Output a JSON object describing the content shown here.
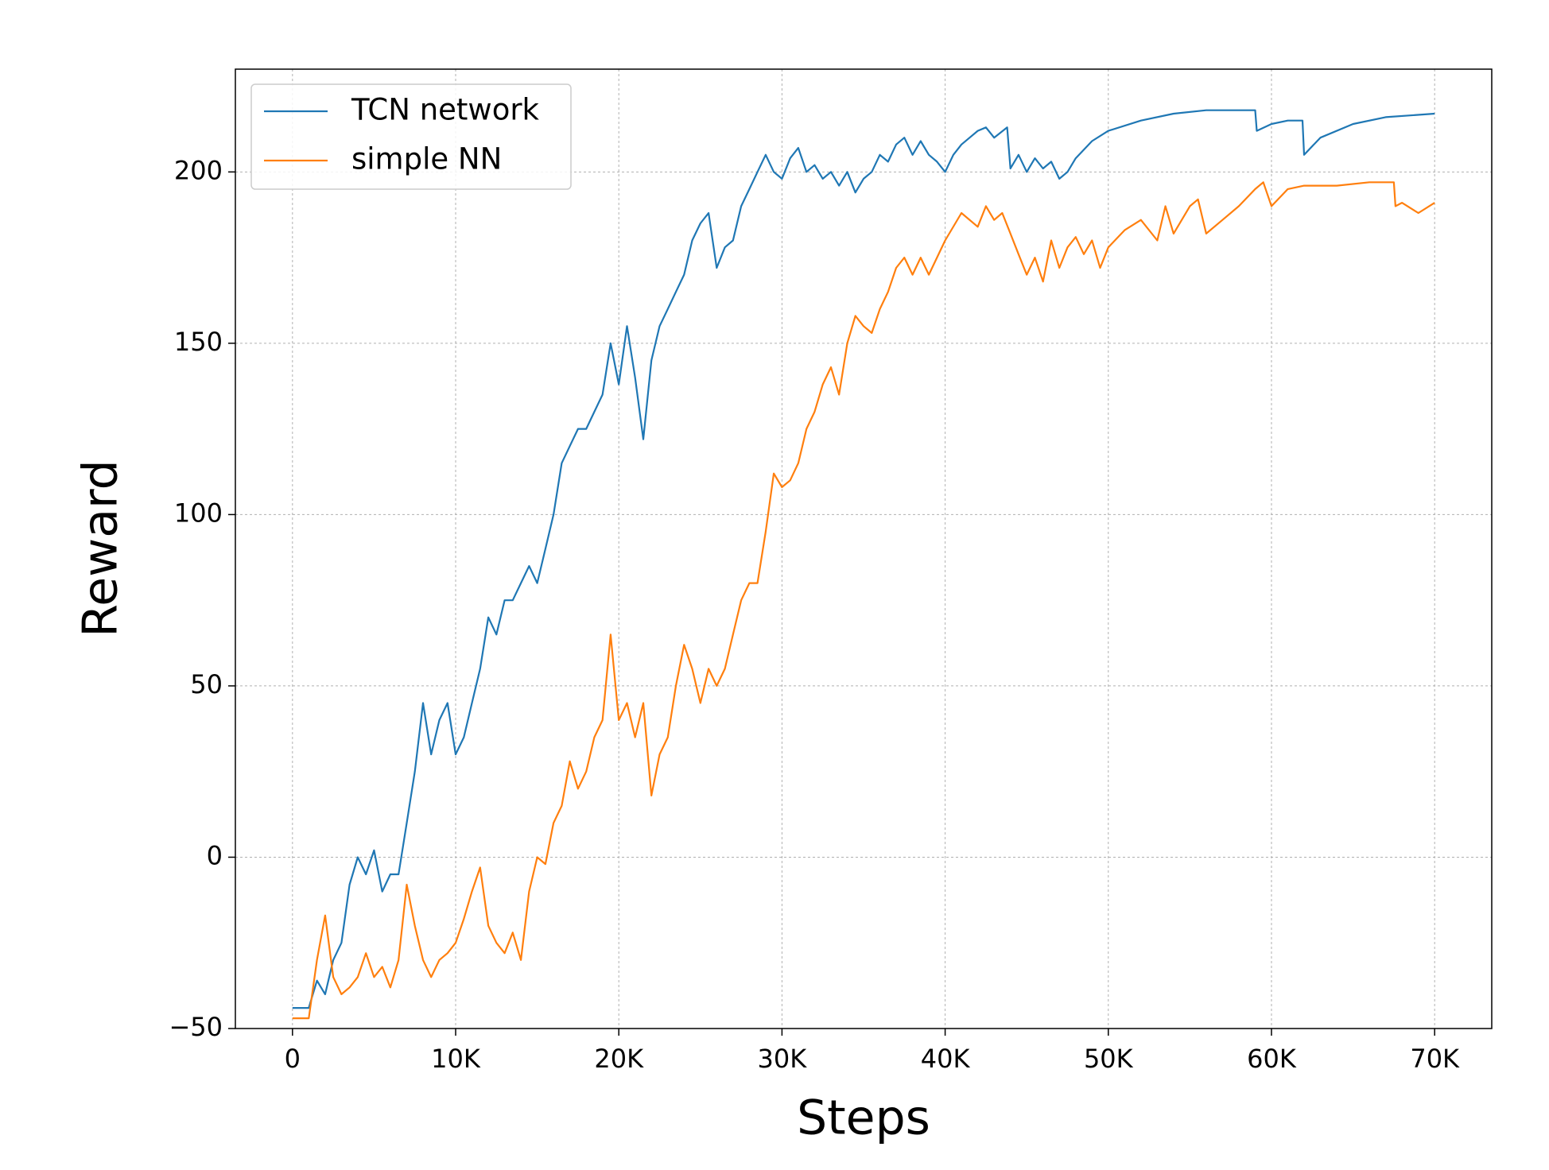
{
  "chart_data": {
    "type": "line",
    "xlabel": "Steps",
    "ylabel": "Reward",
    "xlim": [
      -3500,
      73500
    ],
    "ylim": [
      -50,
      230
    ],
    "xticks": [
      0,
      {
        "value": 10000,
        "label": "10K"
      },
      {
        "value": 20000,
        "label": "20K"
      },
      {
        "value": 30000,
        "label": "30K"
      },
      {
        "value": 40000,
        "label": "40K"
      },
      {
        "value": 50000,
        "label": "50K"
      },
      {
        "value": 60000,
        "label": "60K"
      },
      {
        "value": 70000,
        "label": "70K"
      }
    ],
    "yticks": [
      {
        "value": -50,
        "label": "−50"
      },
      0,
      50,
      100,
      150,
      200
    ],
    "grid": true,
    "legend": "upper left",
    "series": [
      {
        "name": "TCN network",
        "color": "#1f77b4",
        "x": [
          0,
          1000,
          1500,
          2000,
          2500,
          3000,
          3500,
          4000,
          4500,
          5000,
          5500,
          6000,
          6500,
          7000,
          7500,
          8000,
          8500,
          9000,
          9500,
          10000,
          10500,
          11000,
          11500,
          12000,
          12500,
          13000,
          13500,
          14000,
          14500,
          15000,
          15500,
          16000,
          16500,
          17000,
          17500,
          18000,
          18500,
          19000,
          19500,
          20000,
          20500,
          21000,
          21500,
          22000,
          22500,
          23000,
          23500,
          24000,
          24500,
          25000,
          25500,
          26000,
          26500,
          27000,
          27500,
          28000,
          28500,
          29000,
          29500,
          30000,
          30500,
          31000,
          31500,
          32000,
          32500,
          33000,
          33500,
          34000,
          34500,
          35000,
          35500,
          36000,
          36500,
          37000,
          37500,
          38000,
          38500,
          39000,
          39500,
          40000,
          40500,
          41000,
          41500,
          42000,
          42500,
          43000,
          43800,
          44000,
          44500,
          45000,
          45500,
          46000,
          46500,
          47000,
          47500,
          48000,
          49000,
          50000,
          52000,
          54000,
          56000,
          58000,
          59000,
          59100,
          60000,
          61000,
          61900,
          62000,
          63000,
          65000,
          67000,
          70000
        ],
        "values": [
          -44,
          -44,
          -36,
          -40,
          -30,
          -25,
          -8,
          0,
          -5,
          2,
          -10,
          -5,
          -5,
          10,
          25,
          45,
          30,
          40,
          45,
          30,
          35,
          45,
          55,
          70,
          65,
          75,
          75,
          80,
          85,
          80,
          90,
          100,
          115,
          120,
          125,
          125,
          130,
          135,
          150,
          138,
          155,
          140,
          122,
          145,
          155,
          160,
          165,
          170,
          180,
          185,
          188,
          172,
          178,
          180,
          190,
          195,
          200,
          205,
          200,
          198,
          204,
          207,
          200,
          202,
          198,
          200,
          196,
          200,
          194,
          198,
          200,
          205,
          203,
          208,
          210,
          205,
          209,
          205,
          203,
          200,
          205,
          208,
          210,
          212,
          213,
          210,
          213,
          201,
          205,
          200,
          204,
          201,
          203,
          198,
          200,
          204,
          209,
          212,
          215,
          217,
          218,
          218,
          218,
          212,
          214,
          215,
          215,
          205,
          210,
          214,
          216,
          217
        ]
      },
      {
        "name": "simple NN",
        "color": "#ff7f0e",
        "x": [
          0,
          1000,
          1500,
          2000,
          2500,
          3000,
          3500,
          4000,
          4500,
          5000,
          5500,
          6000,
          6500,
          7000,
          7500,
          8000,
          8500,
          9000,
          9500,
          10000,
          10500,
          11000,
          11500,
          12000,
          12500,
          13000,
          13500,
          14000,
          14500,
          15000,
          15500,
          16000,
          16500,
          17000,
          17500,
          18000,
          18500,
          19000,
          19500,
          20000,
          20500,
          21000,
          21500,
          22000,
          22500,
          23000,
          23500,
          24000,
          24500,
          25000,
          25500,
          26000,
          26500,
          27000,
          27500,
          28000,
          28500,
          29000,
          29500,
          30000,
          30500,
          31000,
          31500,
          32000,
          32500,
          33000,
          33500,
          34000,
          34500,
          35000,
          35500,
          36000,
          36500,
          37000,
          37500,
          38000,
          38500,
          39000,
          40000,
          41000,
          42000,
          42500,
          43000,
          43500,
          44000,
          44500,
          45000,
          45500,
          46000,
          46500,
          47000,
          47500,
          48000,
          48500,
          49000,
          49500,
          50000,
          51000,
          52000,
          53000,
          53500,
          54000,
          55000,
          55500,
          56000,
          57000,
          58000,
          59000,
          59500,
          60000,
          61000,
          62000,
          64000,
          66000,
          67500,
          67600,
          68000,
          69000,
          70000
        ],
        "values": [
          -47,
          -47,
          -30,
          -17,
          -35,
          -40,
          -38,
          -35,
          -28,
          -35,
          -32,
          -38,
          -30,
          -8,
          -20,
          -30,
          -35,
          -30,
          -28,
          -25,
          -18,
          -10,
          -3,
          -20,
          -25,
          -28,
          -22,
          -30,
          -10,
          0,
          -2,
          10,
          15,
          28,
          20,
          25,
          35,
          40,
          65,
          40,
          45,
          35,
          45,
          18,
          30,
          35,
          50,
          62,
          55,
          45,
          55,
          50,
          55,
          65,
          75,
          80,
          80,
          95,
          112,
          108,
          110,
          115,
          125,
          130,
          138,
          143,
          135,
          150,
          158,
          155,
          153,
          160,
          165,
          172,
          175,
          170,
          175,
          170,
          180,
          188,
          184,
          190,
          186,
          188,
          182,
          176,
          170,
          175,
          168,
          180,
          172,
          178,
          181,
          176,
          180,
          172,
          178,
          183,
          186,
          180,
          190,
          182,
          190,
          192,
          182,
          186,
          190,
          195,
          197,
          190,
          195,
          196,
          196,
          197,
          197,
          190,
          191,
          188,
          191
        ]
      }
    ]
  }
}
